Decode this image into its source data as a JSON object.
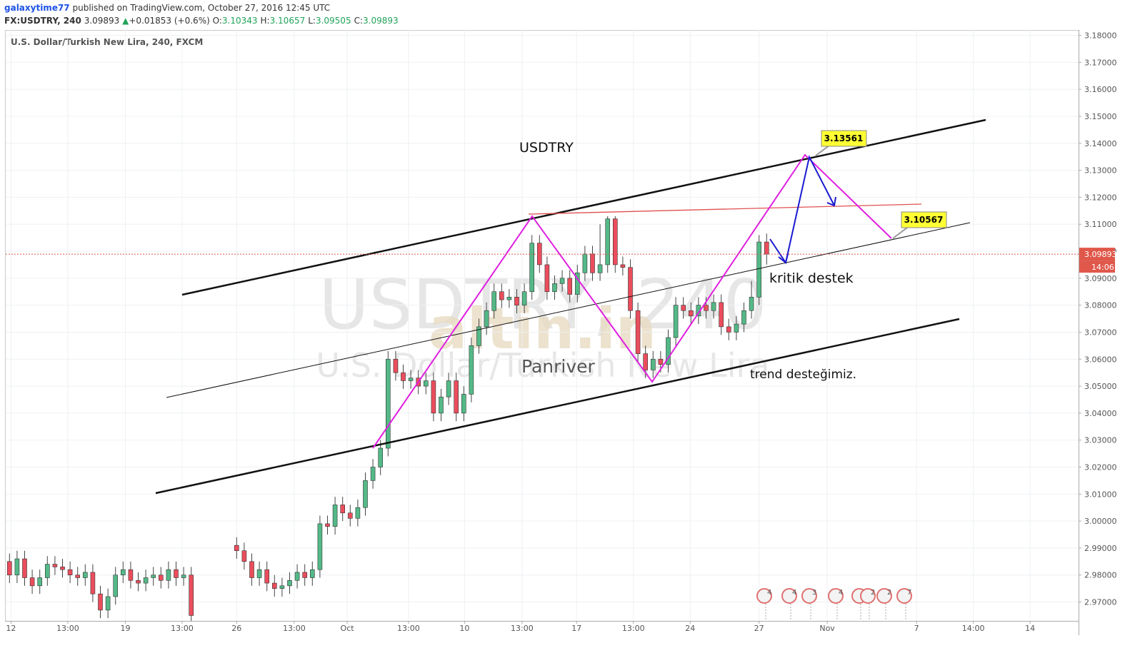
{
  "header": {
    "user": "galaxytime77",
    "published": "published on TradingView.com, October 27, 2016 12:45 UTC",
    "symbol": "FX:USDTRY, 240",
    "last": "3.09893",
    "arrow": "▲",
    "change": "+0.01853 (+0.6%)",
    "ohlc": [
      {
        "label": "O:",
        "value": "3.10343"
      },
      {
        "label": "H:",
        "value": "3.10657"
      },
      {
        "label": "L:",
        "value": "3.09505"
      },
      {
        "label": "C:",
        "value": "3.09893"
      }
    ]
  },
  "chart_data": {
    "type": "candlestick",
    "title": "U.S. Dollar/Turkish New Lira, 240, FXCM",
    "watermark": [
      "USDTRY, 240",
      "U.S. Dollar/Turkish New Lira"
    ],
    "logo": "altin.in",
    "up_color": "#53b987",
    "down_color": "#eb4d5c",
    "open": [
      2.985,
      2.98,
      2.986,
      2.979,
      2.976,
      2.979,
      2.984,
      2.983,
      2.982,
      2.98,
      2.979,
      2.981,
      2.973,
      2.967,
      2.972,
      2.98,
      2.982,
      2.978,
      2.977,
      2.979,
      2.98,
      2.978,
      2.982,
      2.979,
      2.98,
      null,
      null,
      null,
      null,
      null,
      2.991,
      2.989,
      2.985,
      2.979,
      2.982,
      2.977,
      2.975,
      2.976,
      2.978,
      2.981,
      2.979,
      2.982,
      2.999,
      2.998,
      3.006,
      3.003,
      3.001,
      3.005,
      3.015,
      3.02,
      3.027,
      3.06,
      3.055,
      3.052,
      3.053,
      3.05,
      3.052,
      3.04,
      3.046,
      3.052,
      3.04,
      3.047,
      3.065,
      3.072,
      3.078,
      3.085,
      3.082,
      3.083,
      3.08,
      3.085,
      3.103,
      3.095,
      3.085,
      3.088,
      3.09,
      3.084,
      3.092,
      3.099,
      3.092,
      3.095,
      3.112,
      3.095,
      3.094,
      3.078,
      3.062,
      3.056,
      3.06,
      3.058,
      3.068,
      3.08,
      3.078,
      3.076,
      3.08,
      3.078,
      3.081,
      3.072,
      3.07,
      3.073,
      3.078,
      3.083,
      3.10343
    ],
    "high": [
      2.988,
      2.989,
      2.989,
      2.982,
      2.982,
      2.987,
      2.987,
      2.986,
      2.985,
      2.983,
      2.984,
      2.984,
      2.976,
      2.975,
      2.983,
      2.985,
      2.985,
      2.981,
      2.982,
      2.983,
      2.983,
      2.985,
      2.985,
      2.983,
      2.983,
      null,
      null,
      null,
      null,
      null,
      2.994,
      2.992,
      2.988,
      2.985,
      2.985,
      2.98,
      2.979,
      2.981,
      2.984,
      2.984,
      2.985,
      3.002,
      3.002,
      3.009,
      3.009,
      3.006,
      3.008,
      3.018,
      3.023,
      3.03,
      3.063,
      3.063,
      3.058,
      3.056,
      3.056,
      3.055,
      3.055,
      3.049,
      3.055,
      3.055,
      3.05,
      3.068,
      3.075,
      3.081,
      3.088,
      3.088,
      3.086,
      3.086,
      3.088,
      3.106,
      3.106,
      3.098,
      3.091,
      3.093,
      3.093,
      3.095,
      3.102,
      3.102,
      3.11,
      3.113,
      3.113,
      3.098,
      3.097,
      3.081,
      3.065,
      3.063,
      3.063,
      3.071,
      3.083,
      3.083,
      3.081,
      3.083,
      3.083,
      3.084,
      3.084,
      3.075,
      3.076,
      3.081,
      3.089,
      3.106,
      3.10657
    ],
    "low": [
      2.977,
      2.977,
      2.976,
      2.973,
      2.973,
      2.976,
      2.98,
      2.979,
      2.977,
      2.976,
      2.976,
      2.97,
      2.964,
      2.964,
      2.969,
      2.977,
      2.975,
      2.974,
      2.974,
      2.976,
      2.975,
      2.975,
      2.976,
      2.976,
      2.963,
      null,
      null,
      null,
      null,
      null,
      2.986,
      2.982,
      2.976,
      2.976,
      2.974,
      2.972,
      2.972,
      2.973,
      2.975,
      2.976,
      2.976,
      2.979,
      2.995,
      2.995,
      3.0,
      2.998,
      2.998,
      3.002,
      3.012,
      3.017,
      3.024,
      3.052,
      3.049,
      3.049,
      3.047,
      3.047,
      3.037,
      3.037,
      3.043,
      3.037,
      3.037,
      3.044,
      3.062,
      3.069,
      3.075,
      3.079,
      3.079,
      3.077,
      3.077,
      3.082,
      3.092,
      3.082,
      3.082,
      3.085,
      3.081,
      3.081,
      3.089,
      3.089,
      3.089,
      3.092,
      3.092,
      3.091,
      3.075,
      3.059,
      3.053,
      3.053,
      3.055,
      3.055,
      3.065,
      3.075,
      3.073,
      3.073,
      3.075,
      3.075,
      3.069,
      3.067,
      3.067,
      3.07,
      3.075,
      3.08,
      3.09505
    ],
    "close": [
      2.98,
      2.986,
      2.979,
      2.976,
      2.979,
      2.984,
      2.983,
      2.982,
      2.98,
      2.979,
      2.981,
      2.973,
      2.967,
      2.972,
      2.98,
      2.982,
      2.978,
      2.977,
      2.979,
      2.98,
      2.978,
      2.982,
      2.979,
      2.98,
      2.965,
      null,
      null,
      null,
      null,
      null,
      2.989,
      2.985,
      2.979,
      2.982,
      2.977,
      2.975,
      2.976,
      2.978,
      2.981,
      2.979,
      2.982,
      2.999,
      2.998,
      3.006,
      3.003,
      3.001,
      3.005,
      3.015,
      3.02,
      3.027,
      3.06,
      3.055,
      3.052,
      3.053,
      3.05,
      3.052,
      3.04,
      3.046,
      3.052,
      3.04,
      3.047,
      3.065,
      3.072,
      3.078,
      3.085,
      3.082,
      3.083,
      3.08,
      3.085,
      3.103,
      3.095,
      3.085,
      3.088,
      3.09,
      3.084,
      3.092,
      3.099,
      3.092,
      3.095,
      3.112,
      3.095,
      3.094,
      3.078,
      3.062,
      3.056,
      3.06,
      3.058,
      3.068,
      3.08,
      3.078,
      3.076,
      3.08,
      3.078,
      3.081,
      3.072,
      3.07,
      3.073,
      3.078,
      3.083,
      3.10343,
      3.09893
    ],
    "xlim": [
      -0.5,
      141.2
    ],
    "xticks": [
      {
        "value": 0.2,
        "label": "12"
      },
      {
        "value": 7.7,
        "label": "13:00"
      },
      {
        "value": 15.3,
        "label": "19"
      },
      {
        "value": 22.8,
        "label": "13:00"
      },
      {
        "value": 30,
        "label": "26"
      },
      {
        "value": 37.6,
        "label": "13:00"
      },
      {
        "value": 44.6,
        "label": "Oct"
      },
      {
        "value": 52.7,
        "label": "13:00"
      },
      {
        "value": 60.1,
        "label": "10"
      },
      {
        "value": 67.7,
        "label": "13:00"
      },
      {
        "value": 74.9,
        "label": "17"
      },
      {
        "value": 82.4,
        "label": "13:00"
      },
      {
        "value": 89.9,
        "label": "24"
      },
      {
        "value": 99,
        "label": "27"
      },
      {
        "value": 108,
        "label": "Nov"
      },
      {
        "value": 119.8,
        "label": "7"
      },
      {
        "value": 127.3,
        "label": "14:00"
      },
      {
        "value": 134.8,
        "label": "14"
      }
    ],
    "ylim": [
      2.963,
      3.182
    ],
    "yticks": [
      {
        "value": 2.97,
        "label": "2.97000"
      },
      {
        "value": 2.98,
        "label": "2.98000"
      },
      {
        "value": 2.99,
        "label": "2.99000"
      },
      {
        "value": 3.0,
        "label": "3.00000"
      },
      {
        "value": 3.01,
        "label": "3.01000"
      },
      {
        "value": 3.02,
        "label": "3.02000"
      },
      {
        "value": 3.03,
        "label": "3.03000"
      },
      {
        "value": 3.04,
        "label": "3.04000"
      },
      {
        "value": 3.05,
        "label": "3.05000"
      },
      {
        "value": 3.06,
        "label": "3.06000"
      },
      {
        "value": 3.07,
        "label": "3.07000"
      },
      {
        "value": 3.08,
        "label": "3.08000"
      },
      {
        "value": 3.09,
        "label": "3.09000"
      },
      {
        "value": 3.1,
        "label": "3.10000"
      },
      {
        "value": 3.11,
        "label": "3.11000"
      },
      {
        "value": 3.12,
        "label": "3.12000"
      },
      {
        "value": 3.13,
        "label": "3.13000"
      },
      {
        "value": 3.14,
        "label": "3.14000"
      },
      {
        "value": 3.15,
        "label": "3.15000"
      },
      {
        "value": 3.16,
        "label": "3.16000"
      },
      {
        "value": 3.17,
        "label": "3.17000"
      },
      {
        "value": 3.18,
        "label": "3.18000"
      }
    ],
    "grid": true,
    "last_price": {
      "value": 3.09893,
      "label": "3.09893",
      "countdown": "14:06",
      "color": "#e0584b"
    },
    "annotations": {
      "name": "USDTRY",
      "author": "Panriver",
      "support": "kritik destek",
      "trend": "trend desteğimiz.",
      "target_high": "3.13561",
      "target_low": "3.10567"
    },
    "events": [
      4,
      4,
      3,
      4,
      2,
      2,
      2,
      7
    ]
  }
}
